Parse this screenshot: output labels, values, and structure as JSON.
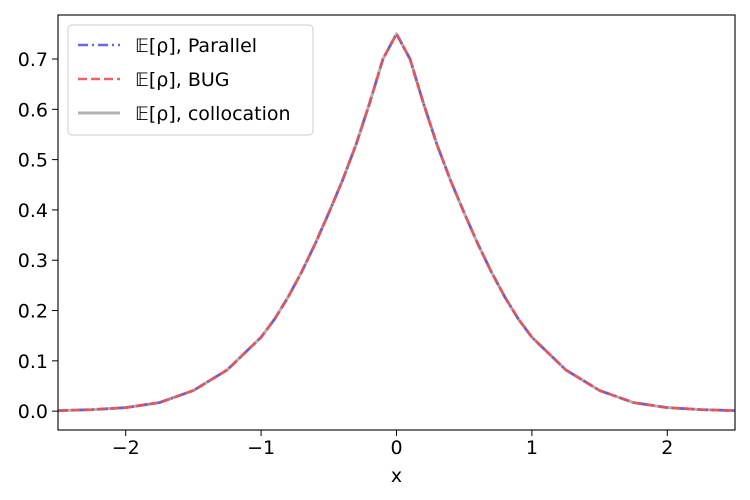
{
  "chart_data": {
    "type": "line",
    "title": "",
    "xlabel": "x",
    "ylabel": "",
    "xlim": [
      -2.5,
      2.5
    ],
    "ylim": [
      -0.0375,
      0.7875
    ],
    "x_ticks": [
      -2,
      -1,
      0,
      1,
      2
    ],
    "x_tick_labels": [
      "−2",
      "−1",
      "0",
      "1",
      "2"
    ],
    "y_ticks": [
      0.0,
      0.1,
      0.2,
      0.3,
      0.4,
      0.5,
      0.6,
      0.7
    ],
    "y_tick_labels": [
      "0.0",
      "0.1",
      "0.2",
      "0.3",
      "0.4",
      "0.5",
      "0.6",
      "0.7"
    ],
    "grid": false,
    "legend_position": "top-left",
    "x": [
      -2.5,
      -2.25,
      -2.0,
      -1.75,
      -1.5,
      -1.25,
      -1.0,
      -0.9,
      -0.8,
      -0.7,
      -0.6,
      -0.5,
      -0.4,
      -0.3,
      -0.2,
      -0.1,
      0.0,
      0.1,
      0.2,
      0.3,
      0.4,
      0.5,
      0.6,
      0.7,
      0.8,
      0.9,
      1.0,
      1.25,
      1.5,
      1.75,
      2.0,
      2.25,
      2.5
    ],
    "series": [
      {
        "name": "𝔼[ρ], Parallel",
        "color": "#5555ee",
        "style": "dashdot",
        "values": [
          0.001,
          0.003,
          0.007,
          0.017,
          0.041,
          0.082,
          0.147,
          0.183,
          0.227,
          0.277,
          0.333,
          0.394,
          0.458,
          0.529,
          0.611,
          0.7,
          0.75,
          0.7,
          0.611,
          0.529,
          0.458,
          0.394,
          0.333,
          0.277,
          0.227,
          0.183,
          0.147,
          0.082,
          0.041,
          0.017,
          0.007,
          0.003,
          0.001
        ]
      },
      {
        "name": "𝔼[ρ], BUG",
        "color": "#f05050",
        "style": "dashed",
        "values": [
          0.001,
          0.003,
          0.007,
          0.017,
          0.041,
          0.082,
          0.147,
          0.183,
          0.227,
          0.277,
          0.333,
          0.394,
          0.458,
          0.529,
          0.611,
          0.7,
          0.75,
          0.7,
          0.611,
          0.529,
          0.458,
          0.394,
          0.333,
          0.277,
          0.227,
          0.183,
          0.147,
          0.082,
          0.041,
          0.017,
          0.007,
          0.003,
          0.001
        ]
      },
      {
        "name": "𝔼[ρ], collocation",
        "color": "#aaaaaa",
        "style": "solid",
        "values": [
          0.001,
          0.003,
          0.007,
          0.017,
          0.041,
          0.082,
          0.147,
          0.183,
          0.227,
          0.277,
          0.333,
          0.394,
          0.458,
          0.529,
          0.611,
          0.7,
          0.75,
          0.7,
          0.611,
          0.529,
          0.458,
          0.394,
          0.333,
          0.277,
          0.227,
          0.183,
          0.147,
          0.082,
          0.041,
          0.017,
          0.007,
          0.003,
          0.001
        ]
      }
    ]
  }
}
